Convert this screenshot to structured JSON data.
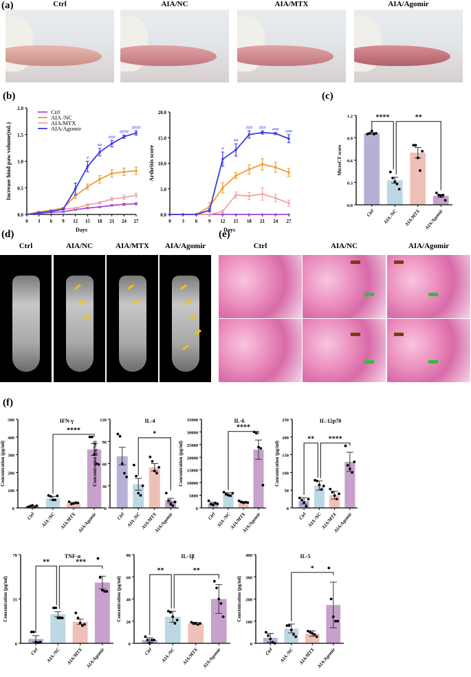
{
  "panels": {
    "a": "(a)",
    "b": "(b)",
    "c": "(c)",
    "d": "(d)",
    "e": "(e)",
    "f": "(f)"
  },
  "groups": [
    "Ctrl",
    "AIA /NC",
    "AIA/MTX",
    "AIA/Agomir"
  ],
  "photo_titles": [
    "Ctrl",
    "AIA/NC",
    "AIA/MTX",
    "AIA/Agomir"
  ],
  "colors": {
    "ctrl": "#a64fd6",
    "nc": "#f39a2d",
    "mtx": "#f5a3a3",
    "agomir": "#3a3ae0",
    "bar_ctrl": "#b5b1d6",
    "bar_nc": "#bcd8e3",
    "bar_mtx": "#efc0b8",
    "bar_agomir": "#c7a0cc"
  },
  "chart_data": [
    {
      "id": "paw",
      "type": "line",
      "xlabel": "Days",
      "ylabel": "Increase hind paw volume(mL)",
      "ylim": [
        0,
        2.0
      ],
      "yticks": [
        0,
        0.5,
        1.0,
        1.5,
        2.0
      ],
      "x": [
        0,
        3,
        6,
        9,
        12,
        15,
        18,
        21,
        24,
        27
      ],
      "legend": "top-left",
      "series": [
        {
          "name": "Ctrl",
          "values": [
            0,
            0.02,
            0.04,
            0.05,
            0.09,
            0.12,
            0.14,
            0.17,
            0.19,
            0.2
          ],
          "err": [
            0,
            0.01,
            0.01,
            0.01,
            0.01,
            0.01,
            0.01,
            0.01,
            0.02,
            0.02
          ]
        },
        {
          "name": "AIA /NC",
          "values": [
            0,
            0.05,
            0.08,
            0.12,
            0.35,
            0.52,
            0.66,
            0.77,
            0.8,
            0.82
          ],
          "err": [
            0,
            0.01,
            0.01,
            0.01,
            0.05,
            0.05,
            0.07,
            0.07,
            0.07,
            0.07
          ]
        },
        {
          "name": "AIA/MTX",
          "values": [
            0,
            0.04,
            0.07,
            0.1,
            0.12,
            0.18,
            0.22,
            0.29,
            0.32,
            0.36
          ],
          "err": [
            0,
            0.01,
            0.01,
            0.01,
            0.01,
            0.02,
            0.02,
            0.03,
            0.04,
            0.04
          ]
        },
        {
          "name": "AIA/Agomir",
          "values": [
            0,
            0.03,
            0.06,
            0.1,
            0.48,
            0.9,
            1.17,
            1.33,
            1.46,
            1.53
          ],
          "err": [
            0,
            0.01,
            0.01,
            0.01,
            0.11,
            0.1,
            0.07,
            0.06,
            0.03,
            0.04
          ]
        }
      ],
      "annotations": [
        {
          "x": 15,
          "text": "#"
        },
        {
          "x": 18,
          "text": "##"
        },
        {
          "x": 21,
          "text": "###"
        },
        {
          "x": 24,
          "text": "####"
        },
        {
          "x": 27,
          "text": "####"
        }
      ]
    },
    {
      "id": "arthritis",
      "type": "line",
      "xlabel": "Days",
      "ylabel": "Arthritis score",
      "ylim": [
        0,
        20
      ],
      "yticks": [
        0,
        5,
        10,
        15,
        20
      ],
      "x": [
        0,
        3,
        6,
        9,
        12,
        15,
        18,
        21,
        24,
        27
      ],
      "series": [
        {
          "name": "Ctrl",
          "values": [
            0,
            0,
            0,
            0,
            0,
            0,
            0,
            0,
            0,
            0
          ],
          "err": [
            0,
            0,
            0,
            0,
            0,
            0,
            0,
            0,
            0,
            0
          ]
        },
        {
          "name": "AIA /NC",
          "values": [
            0,
            0,
            0,
            1.5,
            5.2,
            7.6,
            8.8,
            9.8,
            9.2,
            8.2
          ],
          "err": [
            0,
            0,
            0,
            0.8,
            1,
            0.6,
            0.9,
            1.1,
            1,
            0.8
          ]
        },
        {
          "name": "AIA/MTX",
          "values": [
            0,
            0,
            0,
            0,
            0.6,
            3.8,
            3.6,
            4.0,
            3.2,
            2.2
          ],
          "err": [
            0,
            0,
            0,
            0,
            0.3,
            0.6,
            0.7,
            1.2,
            0.7,
            0.6
          ]
        },
        {
          "name": "AIA/Agomir",
          "values": [
            0,
            0,
            0,
            0.8,
            10.8,
            12.6,
            15.6,
            16,
            15.8,
            14.8
          ],
          "err": [
            0,
            0,
            0,
            0.3,
            1.4,
            1.2,
            0.7,
            0.3,
            0.2,
            0.8
          ]
        }
      ],
      "annotations": [
        {
          "x": 12,
          "text": "#"
        },
        {
          "x": 15,
          "text": "##"
        },
        {
          "x": 18,
          "text": "###"
        },
        {
          "x": 21,
          "text": "###"
        },
        {
          "x": 24,
          "text": "###"
        },
        {
          "x": 27,
          "text": "###"
        }
      ]
    },
    {
      "id": "microct",
      "type": "bar",
      "ylabel": "MicroCT score",
      "ylim": [
        0,
        1.2
      ],
      "yticks": [
        "0.0",
        "0.3",
        "0.6",
        "0.9",
        "1.2"
      ],
      "values": [
        0.96,
        0.33,
        0.7,
        0.12
      ],
      "err": [
        0.01,
        0.04,
        0.07,
        0.02
      ],
      "points": [
        [
          0.95,
          0.96,
          0.99,
          0.95,
          0.96
        ],
        [
          0.44,
          0.36,
          0.31,
          0.28,
          0.21
        ],
        [
          0.8,
          0.8,
          0.63,
          0.46,
          0.72
        ],
        [
          0.16,
          0.13,
          0.12,
          0.13,
          0.06
        ]
      ],
      "sig": [
        {
          "from": 0,
          "to": 1,
          "text": "****",
          "y": 1.12
        },
        {
          "from": 1,
          "to": 3,
          "text": "**",
          "y": 1.12
        }
      ]
    },
    {
      "id": "ifng",
      "type": "bar",
      "title": "IFN-γ",
      "ylabel": "Concentration (pg/ml)",
      "ylim": [
        0,
        500
      ],
      "yticks": [
        "0",
        "100",
        "200",
        "300",
        "400",
        "500"
      ],
      "values": [
        10,
        55,
        27,
        330
      ],
      "err": [
        4,
        10,
        4,
        33
      ],
      "points": [
        [
          5,
          10,
          15,
          3,
          12
        ],
        [
          70,
          65,
          45,
          45,
          68
        ],
        [
          35,
          22,
          25,
          30,
          28
        ],
        [
          400,
          400,
          300,
          250,
          245
        ]
      ],
      "sig": [
        {
          "from": 1,
          "to": 3,
          "text": "****",
          "y": 415
        }
      ]
    },
    {
      "id": "il4",
      "type": "bar",
      "title": "IL-4",
      "ylabel": "Concentration (pg/ml)",
      "ylim": [
        0,
        120
      ],
      "yticks": [
        "0",
        "30",
        "60",
        "90",
        "120"
      ],
      "values": [
        70,
        32,
        55,
        10
      ],
      "err": [
        12,
        8,
        5,
        3
      ],
      "points": [
        [
          100,
          97,
          60,
          47,
          42
        ],
        [
          58,
          43,
          20,
          17,
          30
        ],
        [
          69,
          63,
          50,
          47,
          55
        ],
        [
          20,
          10,
          5,
          3,
          8
        ]
      ],
      "sig": [
        {
          "from": 1,
          "to": 3,
          "text": "*",
          "y": 95
        }
      ]
    },
    {
      "id": "il6",
      "type": "bar",
      "title": "IL-6",
      "ylabel": "Concentration (pg/ml)",
      "ylim": [
        0,
        35000
      ],
      "yticks": [
        "0",
        "5000",
        "10000",
        "15000",
        "20000",
        "25000",
        "30000",
        "35000"
      ],
      "values": [
        1800,
        5500,
        2300,
        23000
      ],
      "err": [
        400,
        500,
        300,
        3800
      ],
      "points": [
        [
          2800,
          1500,
          1200,
          2000,
          1600
        ],
        [
          6200,
          5500,
          5000,
          4800,
          5800
        ],
        [
          2800,
          2400,
          2000,
          2200,
          2100
        ],
        [
          30000,
          29500,
          24000,
          23500,
          9000
        ]
      ],
      "sig": [
        {
          "from": 1,
          "to": 3,
          "text": "****",
          "y": 30200
        }
      ]
    },
    {
      "id": "il12",
      "type": "bar",
      "title": "IL-12p70",
      "ylabel": "Concentration (pg/ml)",
      "ylim": [
        0,
        250
      ],
      "yticks": [
        "0",
        "50",
        "100",
        "150",
        "200",
        "250"
      ],
      "values": [
        20,
        63,
        36,
        130
      ],
      "err": [
        9,
        13,
        11,
        27
      ],
      "points": [
        [
          28,
          22,
          15,
          5,
          25
        ],
        [
          78,
          76,
          65,
          52,
          62
        ],
        [
          53,
          44,
          35,
          25,
          40
        ],
        [
          175,
          120,
          110,
          100,
          130
        ]
      ],
      "sig": [
        {
          "from": 0,
          "to": 1,
          "text": "**",
          "y": 183
        },
        {
          "from": 1,
          "to": 3,
          "text": "****",
          "y": 183
        }
      ]
    },
    {
      "id": "tnfa",
      "type": "bar",
      "title": "TNF-α",
      "ylabel": "Concentration (pg/ml)",
      "ylim": [
        0,
        70
      ],
      "yticks": [
        "0",
        "35",
        "70"
      ],
      "values": [
        3.5,
        23,
        17,
        48
      ],
      "err": [
        2.5,
        2,
        2,
        5
      ],
      "points": [
        [
          9,
          9,
          1,
          0.5,
          1
        ],
        [
          28,
          28,
          20,
          20,
          20
        ],
        [
          24,
          20,
          16,
          14,
          15
        ],
        [
          67,
          52,
          42,
          41,
          41
        ]
      ],
      "sig": [
        {
          "from": 0,
          "to": 1,
          "text": "**",
          "y": 61
        },
        {
          "from": 1,
          "to": 3,
          "text": "***",
          "y": 61
        }
      ]
    },
    {
      "id": "il1b",
      "type": "bar",
      "title": "IL-1β",
      "ylabel": "Concentration (pg/ml)",
      "ylim": [
        0,
        80
      ],
      "yticks": [
        "0",
        "20",
        "40",
        "60",
        "80"
      ],
      "values": [
        3,
        24,
        18,
        40
      ],
      "err": [
        2,
        5,
        1,
        13
      ],
      "points": [
        [
          6,
          3,
          0,
          3,
          3
        ],
        [
          29,
          28,
          24,
          18,
          21
        ],
        [
          19,
          18,
          18,
          17,
          18
        ],
        [
          56,
          50,
          40,
          36,
          24
        ]
      ],
      "sig": [
        {
          "from": 0,
          "to": 1,
          "text": "**",
          "y": 62
        },
        {
          "from": 1,
          "to": 3,
          "text": "**",
          "y": 62
        }
      ]
    },
    {
      "id": "il5",
      "type": "bar",
      "title": "IL-5",
      "ylabel": "Concentration (pg/ml)",
      "ylim": [
        0,
        400
      ],
      "yticks": [
        "0",
        "100",
        "200",
        "300",
        "400"
      ],
      "values": [
        25,
        67,
        44,
        173
      ],
      "err": [
        20,
        20,
        12,
        103
      ],
      "points": [
        [
          50,
          35,
          20,
          5,
          0
        ],
        [
          80,
          80,
          60,
          40,
          30
        ],
        [
          55,
          50,
          45,
          40,
          30
        ],
        [
          340,
          200,
          120,
          100,
          100
        ]
      ],
      "sig": [
        {
          "from": 1,
          "to": 3,
          "text": "*",
          "y": 320
        }
      ]
    }
  ]
}
